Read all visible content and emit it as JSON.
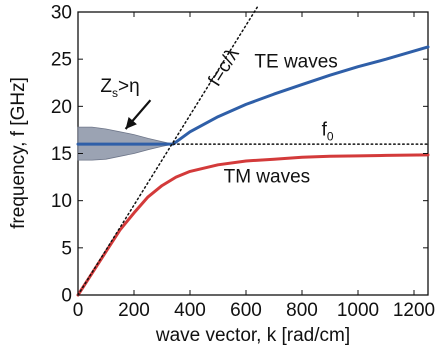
{
  "chart_data": {
    "type": "line",
    "xlabel": "wave vector, k [rad/cm]",
    "ylabel": "frequency, f [GHz]",
    "xlim": [
      0,
      1250
    ],
    "ylim": [
      0,
      30
    ],
    "x_ticks": [
      0,
      200,
      400,
      600,
      800,
      1000,
      1200
    ],
    "y_ticks": [
      0,
      5,
      10,
      15,
      20,
      25,
      30
    ],
    "x_tick_labels": [
      "0",
      "200",
      "400",
      "600",
      "800",
      "1000",
      "1200"
    ],
    "y_tick_labels": [
      "0",
      "5",
      "10",
      "15",
      "20",
      "25",
      "30"
    ],
    "grid": false,
    "series": [
      {
        "name": "TE waves",
        "color": "#2f5fa8",
        "style": "solid",
        "x": [
          0,
          100,
          200,
          300,
          340,
          400,
          500,
          600,
          700,
          800,
          900,
          1000,
          1100,
          1250
        ],
        "y": [
          16,
          16,
          16,
          16,
          16,
          17.3,
          18.9,
          20.2,
          21.3,
          22.3,
          23.3,
          24.2,
          25.0,
          26.3
        ]
      },
      {
        "name": "TM waves",
        "color": "#d33a3a",
        "style": "solid",
        "x": [
          0,
          50,
          100,
          150,
          200,
          250,
          300,
          350,
          400,
          500,
          600,
          700,
          800,
          900,
          1000,
          1100,
          1250
        ],
        "y": [
          0,
          2.3,
          4.6,
          6.9,
          8.7,
          10.4,
          11.6,
          12.5,
          13.1,
          13.8,
          14.2,
          14.4,
          14.6,
          14.7,
          14.75,
          14.8,
          14.85
        ]
      },
      {
        "name": "f=c/λ",
        "color": "#111111",
        "style": "dotted",
        "x": [
          0,
          640
        ],
        "y": [
          0,
          30.5
        ]
      },
      {
        "name": "f₀",
        "color": "#111111",
        "style": "dotted",
        "x": [
          340,
          1250
        ],
        "y": [
          16,
          16
        ]
      }
    ],
    "shaded_band": {
      "color": "#8a93a6",
      "x": [
        0,
        50,
        100,
        150,
        200,
        250,
        300,
        340
      ],
      "upper": [
        17.8,
        17.8,
        17.6,
        17.3,
        17.0,
        16.6,
        16.25,
        16.0
      ],
      "lower": [
        14.3,
        14.3,
        14.4,
        14.7,
        15.0,
        15.4,
        15.75,
        16.0
      ]
    },
    "annotations": [
      {
        "text": "TE waves",
        "x": 630,
        "y": 24.1
      },
      {
        "text": "TM waves",
        "x": 520,
        "y": 11.9
      },
      {
        "text": "f",
        "sub": "0",
        "x": 870,
        "y": 16.9
      },
      {
        "text": "f=c/λ",
        "x": 500,
        "y": 22.0,
        "rotate": -58
      },
      {
        "text": "Z",
        "sub": "s",
        "suffix": ">η",
        "x": 80,
        "y": 21.5,
        "arrow_to": [
          170,
          17.6
        ]
      }
    ]
  }
}
